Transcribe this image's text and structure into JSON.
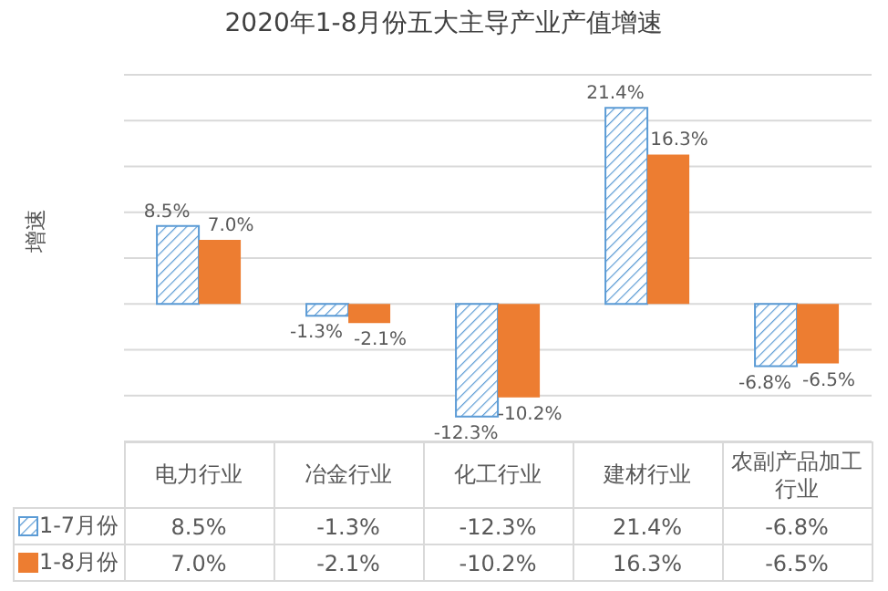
{
  "chart_data": {
    "type": "bar",
    "title": "2020年1-8月份五大主导产业产值增速",
    "ylabel": "增速",
    "categories": [
      "电力行业",
      "冶金行业",
      "化工行业",
      "建材行业",
      "农副产品加工行业"
    ],
    "series": [
      {
        "name": "1-7月份",
        "color": "#5b9bd5",
        "values": [
          8.5,
          -1.3,
          -12.3,
          21.4,
          -6.8
        ],
        "value_labels": [
          "8.5%",
          "-1.3%",
          "-12.3%",
          "21.4%",
          "-6.8%"
        ]
      },
      {
        "name": "1-8月份",
        "color": "#ed7d31",
        "values": [
          7.0,
          -2.1,
          -10.2,
          16.3,
          -6.5
        ],
        "value_labels": [
          "7.0%",
          "-2.1%",
          "-10.2%",
          "16.3%",
          "-6.5%"
        ]
      }
    ],
    "ylim": [
      -15,
      25
    ],
    "yticks": [
      -15,
      -10,
      -5,
      0,
      5,
      10,
      15,
      20,
      25
    ],
    "grid": "y",
    "tick_labels": false,
    "legend": "bottom"
  }
}
